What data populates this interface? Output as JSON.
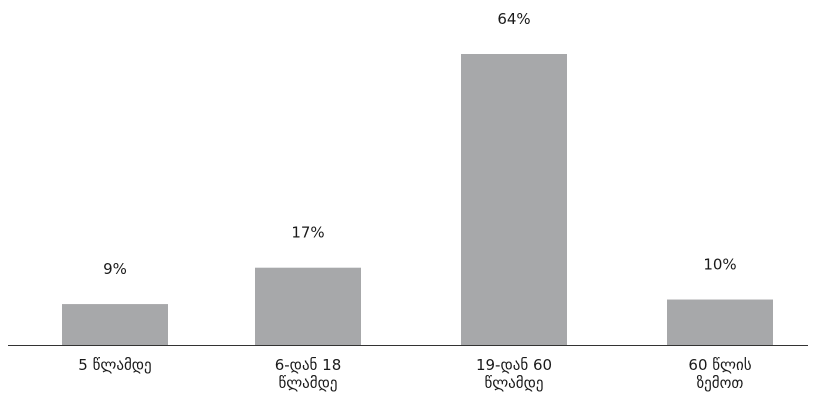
{
  "chart_data": {
    "type": "bar",
    "categories": [
      [
        "5 წლამდე"
      ],
      [
        "6-დან 18",
        "წლამდე"
      ],
      [
        "19-დან 60",
        "წლამდე"
      ],
      [
        "60 წლის",
        "ზემოთ"
      ]
    ],
    "values": [
      9,
      17,
      64,
      10
    ],
    "data_labels": [
      "9%",
      "17%",
      "64%",
      "10%"
    ],
    "ylim": [
      0,
      64
    ],
    "grid": false,
    "legend": "none",
    "bar_color": "#a7a8aa",
    "axis_color": "#333333"
  }
}
